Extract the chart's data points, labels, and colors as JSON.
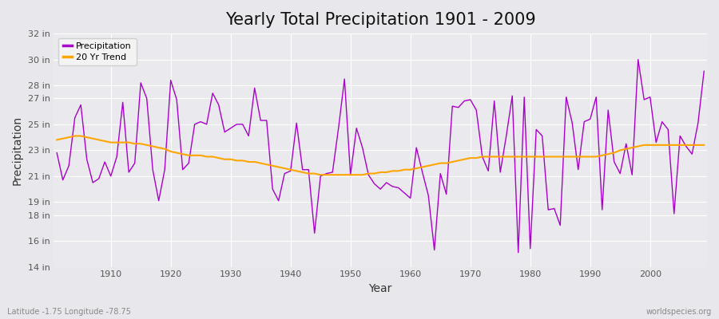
{
  "title": "Yearly Total Precipitation 1901 - 2009",
  "xlabel": "Year",
  "ylabel": "Precipitation",
  "lat_lon_label": "Latitude -1.75 Longitude -78.75",
  "source_label": "worldspecies.org",
  "years": [
    1901,
    1902,
    1903,
    1904,
    1905,
    1906,
    1907,
    1908,
    1909,
    1910,
    1911,
    1912,
    1913,
    1914,
    1915,
    1916,
    1917,
    1918,
    1919,
    1920,
    1921,
    1922,
    1923,
    1924,
    1925,
    1926,
    1927,
    1928,
    1929,
    1930,
    1931,
    1932,
    1933,
    1934,
    1935,
    1936,
    1937,
    1938,
    1939,
    1940,
    1941,
    1942,
    1943,
    1944,
    1945,
    1946,
    1947,
    1948,
    1949,
    1950,
    1951,
    1952,
    1953,
    1954,
    1955,
    1956,
    1957,
    1958,
    1959,
    1960,
    1961,
    1962,
    1963,
    1964,
    1965,
    1966,
    1967,
    1968,
    1969,
    1970,
    1971,
    1972,
    1973,
    1974,
    1975,
    1976,
    1977,
    1978,
    1979,
    1980,
    1981,
    1982,
    1983,
    1984,
    1985,
    1986,
    1987,
    1988,
    1989,
    1990,
    1991,
    1992,
    1993,
    1994,
    1995,
    1996,
    1997,
    1998,
    1999,
    2000,
    2001,
    2002,
    2003,
    2004,
    2005,
    2006,
    2007,
    2008,
    2009
  ],
  "precip": [
    22.8,
    20.7,
    21.8,
    25.5,
    26.5,
    22.3,
    20.5,
    20.8,
    22.1,
    21.0,
    22.5,
    26.7,
    21.3,
    22.0,
    28.2,
    27.0,
    21.5,
    19.1,
    21.5,
    28.4,
    26.9,
    21.5,
    22.0,
    25.0,
    25.2,
    25.0,
    27.4,
    26.5,
    24.4,
    24.7,
    25.0,
    25.0,
    24.1,
    27.8,
    25.3,
    25.3,
    20.0,
    19.1,
    21.2,
    21.4,
    25.1,
    21.5,
    21.5,
    16.6,
    21.0,
    21.2,
    21.3,
    24.7,
    28.5,
    21.1,
    24.7,
    23.2,
    21.1,
    20.4,
    20.0,
    20.5,
    20.2,
    20.1,
    19.7,
    19.3,
    23.2,
    21.3,
    19.5,
    15.3,
    21.2,
    19.6,
    26.4,
    26.3,
    26.8,
    26.9,
    26.1,
    22.5,
    21.4,
    26.8,
    21.3,
    24.1,
    27.2,
    15.1,
    27.1,
    15.4,
    24.6,
    24.1,
    18.4,
    18.5,
    17.2,
    27.1,
    25.1,
    21.5,
    25.2,
    25.4,
    27.1,
    18.4,
    26.1,
    22.1,
    21.2,
    23.5,
    21.1,
    30.0,
    26.9,
    27.1,
    23.6,
    25.2,
    24.6,
    18.1,
    24.1,
    23.3,
    22.7,
    25.1,
    29.1
  ],
  "trend": [
    23.8,
    23.9,
    24.0,
    24.1,
    24.1,
    24.0,
    23.9,
    23.8,
    23.7,
    23.6,
    23.6,
    23.6,
    23.6,
    23.5,
    23.5,
    23.4,
    23.3,
    23.2,
    23.1,
    22.9,
    22.8,
    22.7,
    22.6,
    22.6,
    22.6,
    22.5,
    22.5,
    22.4,
    22.3,
    22.3,
    22.2,
    22.2,
    22.1,
    22.1,
    22.0,
    21.9,
    21.8,
    21.7,
    21.6,
    21.5,
    21.4,
    21.3,
    21.2,
    21.2,
    21.1,
    21.1,
    21.1,
    21.1,
    21.1,
    21.1,
    21.1,
    21.1,
    21.2,
    21.2,
    21.3,
    21.3,
    21.4,
    21.4,
    21.5,
    21.5,
    21.6,
    21.7,
    21.8,
    21.9,
    22.0,
    22.0,
    22.1,
    22.2,
    22.3,
    22.4,
    22.4,
    22.5,
    22.5,
    22.5,
    22.5,
    22.5,
    22.5,
    22.5,
    22.5,
    22.5,
    22.5,
    22.5,
    22.5,
    22.5,
    22.5,
    22.5,
    22.5,
    22.5,
    22.5,
    22.5,
    22.5,
    22.6,
    22.7,
    22.8,
    23.0,
    23.1,
    23.2,
    23.3,
    23.4,
    23.4,
    23.4,
    23.4,
    23.4,
    23.4,
    23.4,
    23.4,
    23.4,
    23.4,
    23.4
  ],
  "precip_color": "#AA00CC",
  "trend_color": "#FFA500",
  "bg_color": "#E8E8EC",
  "plot_bg_color": "#EAEAEE",
  "grid_color": "#FFFFFF",
  "ylim": [
    14,
    32
  ],
  "yticks": [
    14,
    16,
    18,
    19,
    21,
    23,
    25,
    27,
    28,
    30,
    32
  ],
  "ytick_labels": [
    "14 in",
    "16 in",
    "18 in",
    "19 in",
    "21 in",
    "23 in",
    "25 in",
    "27 in",
    "28 in",
    "30 in",
    "32 in"
  ],
  "xticks": [
    1910,
    1920,
    1930,
    1940,
    1950,
    1960,
    1970,
    1980,
    1990,
    2000
  ],
  "title_fontsize": 15,
  "axis_fontsize": 10,
  "tick_fontsize": 8,
  "legend_fontsize": 8
}
